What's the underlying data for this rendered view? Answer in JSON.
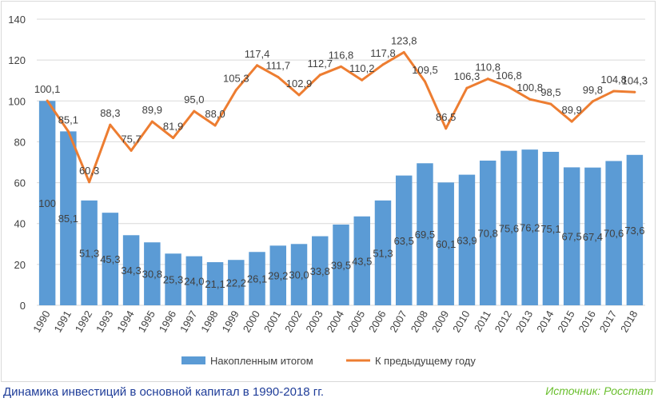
{
  "caption": "Динамика инвестиций в основной капитал в 1990-2018 гг.",
  "source": "Источник: Росстат",
  "chart_data": {
    "type": "bar+line",
    "title": "",
    "xlabel": "",
    "ylabel": "",
    "ylim": [
      0,
      140
    ],
    "yticks": [
      0,
      20,
      40,
      60,
      80,
      100,
      120,
      140
    ],
    "grid": true,
    "legend_position": "bottom",
    "categories": [
      "1990",
      "1991",
      "1992",
      "1993",
      "1994",
      "1995",
      "1996",
      "1997",
      "1998",
      "1999",
      "2000",
      "2001",
      "2002",
      "2003",
      "2004",
      "2005",
      "2006",
      "2007",
      "2008",
      "2009",
      "2010",
      "2011",
      "2012",
      "2013",
      "2014",
      "2015",
      "2016",
      "2017",
      "2018"
    ],
    "series": [
      {
        "name": "Накопленным итогом",
        "type": "bar",
        "color": "#5b9bd5",
        "values": [
          100,
          85.1,
          51.3,
          45.3,
          34.3,
          30.8,
          25.3,
          24.0,
          21.1,
          22.2,
          26.1,
          29.2,
          30.0,
          33.8,
          39.5,
          43.5,
          51.3,
          63.5,
          69.5,
          60.1,
          63.9,
          70.8,
          75.6,
          76.2,
          75.1,
          67.5,
          67.4,
          70.6,
          73.6
        ],
        "labels": [
          "100",
          "85,1",
          "51,3",
          "45,3",
          "34,3",
          "30,8",
          "25,3",
          "24,0",
          "21,1",
          "22,2",
          "26,1",
          "29,2",
          "30,0",
          "33,8",
          "39,5",
          "43,5",
          "51,3",
          "63,5",
          "69,5",
          "60,1",
          "63,9",
          "70,8",
          "75,6",
          "76,2",
          "75,1",
          "67,5",
          "67,4",
          "70,6",
          "73,6"
        ]
      },
      {
        "name": "К предыдущему году",
        "type": "line",
        "color": "#ed7d31",
        "values": [
          100.1,
          85.1,
          60.3,
          88.3,
          75.7,
          89.9,
          81.9,
          95.0,
          88.0,
          105.3,
          117.4,
          111.7,
          102.9,
          112.7,
          116.8,
          110.2,
          117.8,
          123.8,
          109.5,
          86.5,
          106.3,
          110.8,
          106.8,
          100.8,
          98.5,
          89.9,
          99.8,
          104.8,
          104.3
        ],
        "labels": [
          "100,1",
          "85,1",
          "60,3",
          "88,3",
          "75,7",
          "89,9",
          "81,9",
          "95,0",
          "88,0",
          "105,3",
          "117,4",
          "111,7",
          "102,9",
          "112,7",
          "116,8",
          "110,2",
          "117,8",
          "123,8",
          "109,5",
          "86,5",
          "106,3",
          "110,8",
          "106,8",
          "100,8",
          "98,5",
          "89,9",
          "99,8",
          "104,8",
          "104,3"
        ]
      }
    ]
  }
}
